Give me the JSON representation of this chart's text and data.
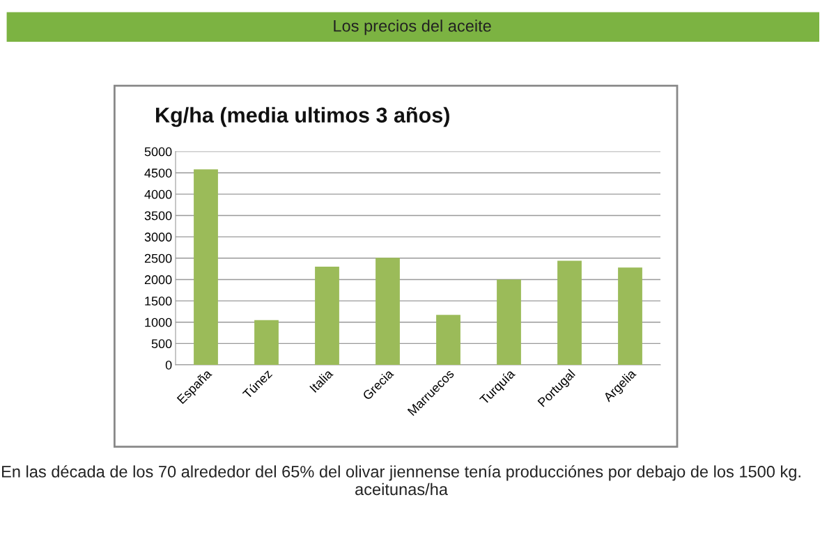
{
  "chart_data": {
    "type": "bar",
    "title": "Los precios del aceite",
    "subtitle": "Kg/ha (media ultimos 3 años)",
    "categories": [
      "España",
      "Túnez",
      "Italia",
      "Grecia",
      "Marruecos",
      "Turquía",
      "Portugal",
      "Argelia"
    ],
    "values": [
      4580,
      1050,
      2300,
      2510,
      1170,
      2000,
      2440,
      2280
    ],
    "color": "#9bbb59",
    "ylim": [
      0,
      5000
    ],
    "yticks": [
      0,
      500,
      1000,
      1500,
      2000,
      2500,
      3000,
      3500,
      4000,
      4500,
      5000
    ],
    "grid": "y",
    "annotations": [
      "En las década de los 70 alrededor del 65% del olivar jiennense tenía producciónes por debajo de los 1500 kg. aceitunas/ha"
    ]
  }
}
